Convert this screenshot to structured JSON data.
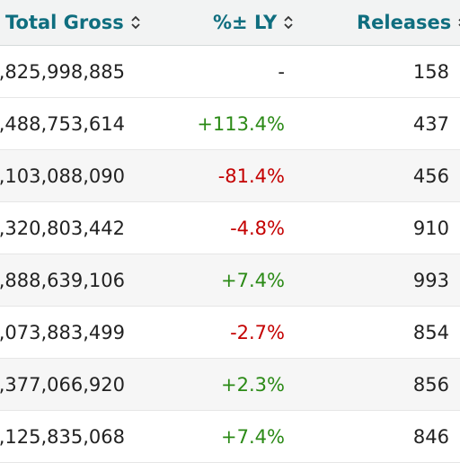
{
  "columns": {
    "gross": "Total Gross",
    "pct_ly": "%± LY",
    "releases": "Releases"
  },
  "rows": [
    {
      "gross": ",825,998,885",
      "pct_ly": "-",
      "releases": "158",
      "trend": "neutral"
    },
    {
      "gross": ",488,753,614",
      "pct_ly": "+113.4%",
      "releases": "437",
      "trend": "pos"
    },
    {
      "gross": ",103,088,090",
      "pct_ly": "-81.4%",
      "releases": "456",
      "trend": "neg"
    },
    {
      "gross": ",320,803,442",
      "pct_ly": "-4.8%",
      "releases": "910",
      "trend": "neg"
    },
    {
      "gross": ",888,639,106",
      "pct_ly": "+7.4%",
      "releases": "993",
      "trend": "pos"
    },
    {
      "gross": ",073,883,499",
      "pct_ly": "-2.7%",
      "releases": "854",
      "trend": "neg"
    },
    {
      "gross": ",377,066,920",
      "pct_ly": "+2.3%",
      "releases": "856",
      "trend": "pos"
    },
    {
      "gross": ",125,835,068",
      "pct_ly": "+7.4%",
      "releases": "846",
      "trend": "pos"
    }
  ],
  "colors": {
    "positive": "#2b8a16",
    "negative": "#c40000",
    "header_text": "#0f6e7f"
  },
  "icons": {
    "sort": "sort-icon"
  }
}
